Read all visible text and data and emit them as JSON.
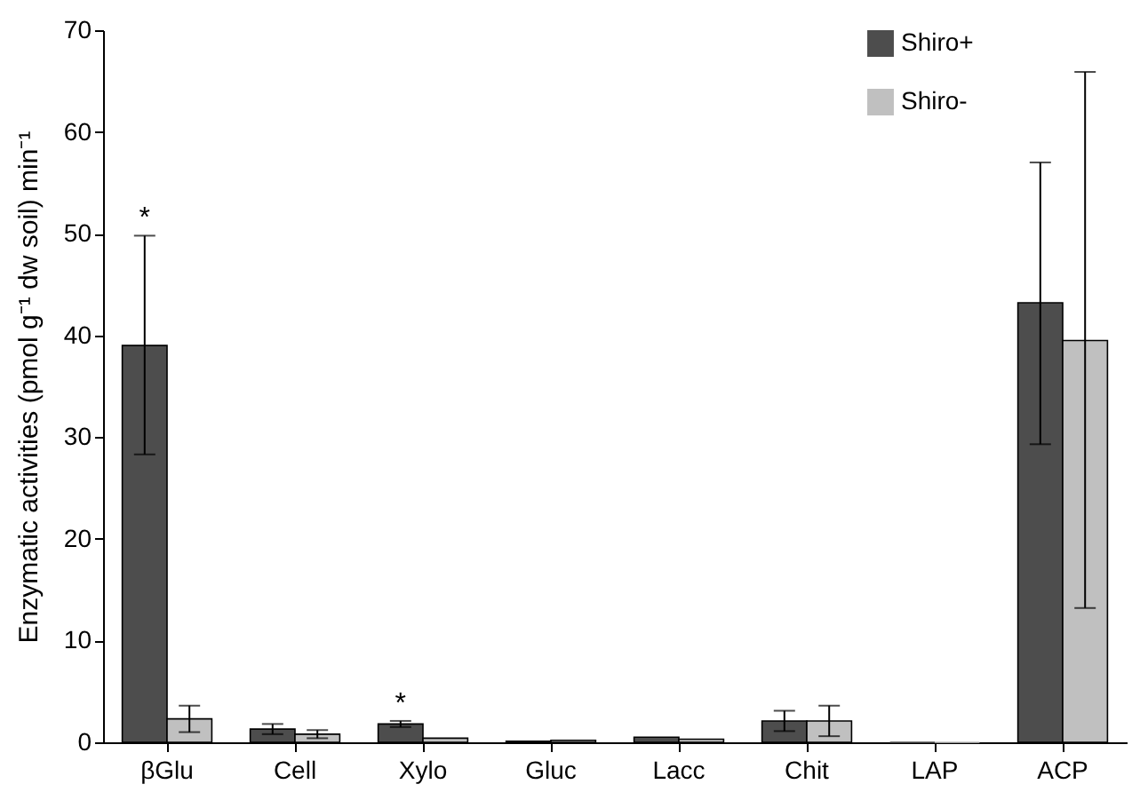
{
  "chart_data": {
    "type": "bar",
    "ylabel": "Enzymatic activities (pmol g⁻¹ dw soil) min⁻¹",
    "categories": [
      "βGlu",
      "Cell",
      "Xylo",
      "Gluc",
      "Lacc",
      "Chit",
      "LAP",
      "ACP"
    ],
    "series": [
      {
        "name": "Shiro+",
        "color": "#4d4d4d",
        "values": [
          39,
          1.3,
          1.8,
          0.1,
          0.5,
          2.1,
          0,
          43.2
        ],
        "errors": [
          [
            28.3,
            49.8
          ],
          0.5,
          0.3,
          null,
          null,
          1,
          null,
          [
            29.3,
            57
          ]
        ]
      },
      {
        "name": "Shiro-",
        "color": "#c0c0c0",
        "values": [
          2.3,
          0.8,
          0.4,
          0.2,
          0.3,
          2.1,
          0,
          39.5
        ],
        "errors": [
          1.3,
          0.4,
          null,
          null,
          null,
          1.5,
          null,
          [
            13.2,
            65.9
          ]
        ]
      }
    ],
    "annotations": [
      "*",
      "*"
    ],
    "ylim": [
      0,
      70
    ],
    "yticks": [
      0,
      10,
      20,
      30,
      40,
      50,
      60,
      70
    ],
    "grid": false,
    "legend": "top right"
  }
}
